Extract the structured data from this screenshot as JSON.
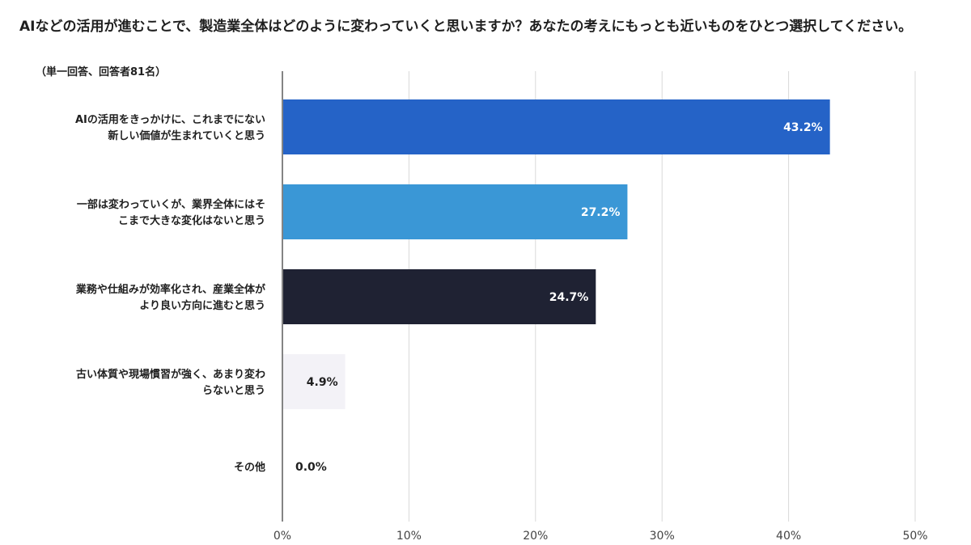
{
  "chart_data": {
    "type": "bar",
    "orientation": "horizontal",
    "title": "AIなどの活用が進むことで、製造業全体はどのように変わっていくと思いますか？あなたの考えにもっとも近いものをひとつ選択してください。",
    "subtitle": "（単一回答、回答者81名）",
    "categories": [
      [
        "AIの活用をきっかけに、これまでにない",
        "新しい価値が生まれていくと思う"
      ],
      [
        "一部は変わっていくが、業界全体にはそ",
        "こまで大きな変化はないと思う"
      ],
      [
        "業務や仕組みが効率化され、産業全体が",
        "より良い方向に進むと思う"
      ],
      [
        "古い体質や現場慣習が強く、あまり変わ",
        "らないと思う"
      ],
      [
        "その他"
      ]
    ],
    "values": [
      43.2,
      27.2,
      24.7,
      4.9,
      0.0
    ],
    "value_labels": [
      "43.2%",
      "27.2%",
      "24.7%",
      "4.9%",
      "0.0%"
    ],
    "colors": [
      "#2563c7",
      "#3a97d6",
      "#1f2233",
      "#f3f2f7",
      "#ffffff"
    ],
    "label_colors": [
      "#ffffff",
      "#ffffff",
      "#ffffff",
      "#1f1f1f",
      "#1f1f1f"
    ],
    "xlim": [
      0,
      50
    ],
    "xticks": [
      0,
      10,
      20,
      30,
      40,
      50
    ],
    "xtick_labels": [
      "0%",
      "10%",
      "20%",
      "30%",
      "40%",
      "50%"
    ],
    "grid": true
  }
}
